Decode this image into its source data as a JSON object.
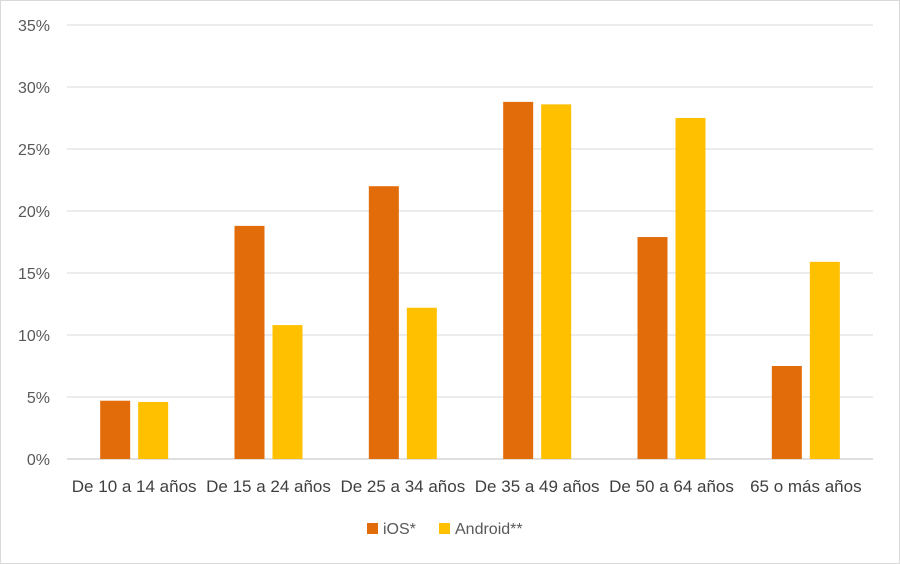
{
  "chart_data": {
    "type": "bar",
    "categories": [
      "De 10 a 14 años",
      "De 15 a 24 años",
      "De 25 a 34 años",
      "De 35 a 49 años",
      "De 50 a 64 años",
      "65 o más años"
    ],
    "series": [
      {
        "name": "iOS*",
        "color": "#e36c0a",
        "values": [
          4.7,
          18.8,
          22.0,
          28.8,
          17.9,
          7.5
        ]
      },
      {
        "name": "Android**",
        "color": "#ffc000",
        "values": [
          4.6,
          10.8,
          12.2,
          28.6,
          27.5,
          15.9
        ]
      }
    ],
    "ylim": [
      0,
      35
    ],
    "yticks": [
      0,
      5,
      10,
      15,
      20,
      25,
      30,
      35
    ],
    "ytick_labels": [
      "0%",
      "5%",
      "10%",
      "15%",
      "20%",
      "25%",
      "30%",
      "35%"
    ],
    "y_unit": "%",
    "grid": true,
    "legend_position": "bottom"
  }
}
